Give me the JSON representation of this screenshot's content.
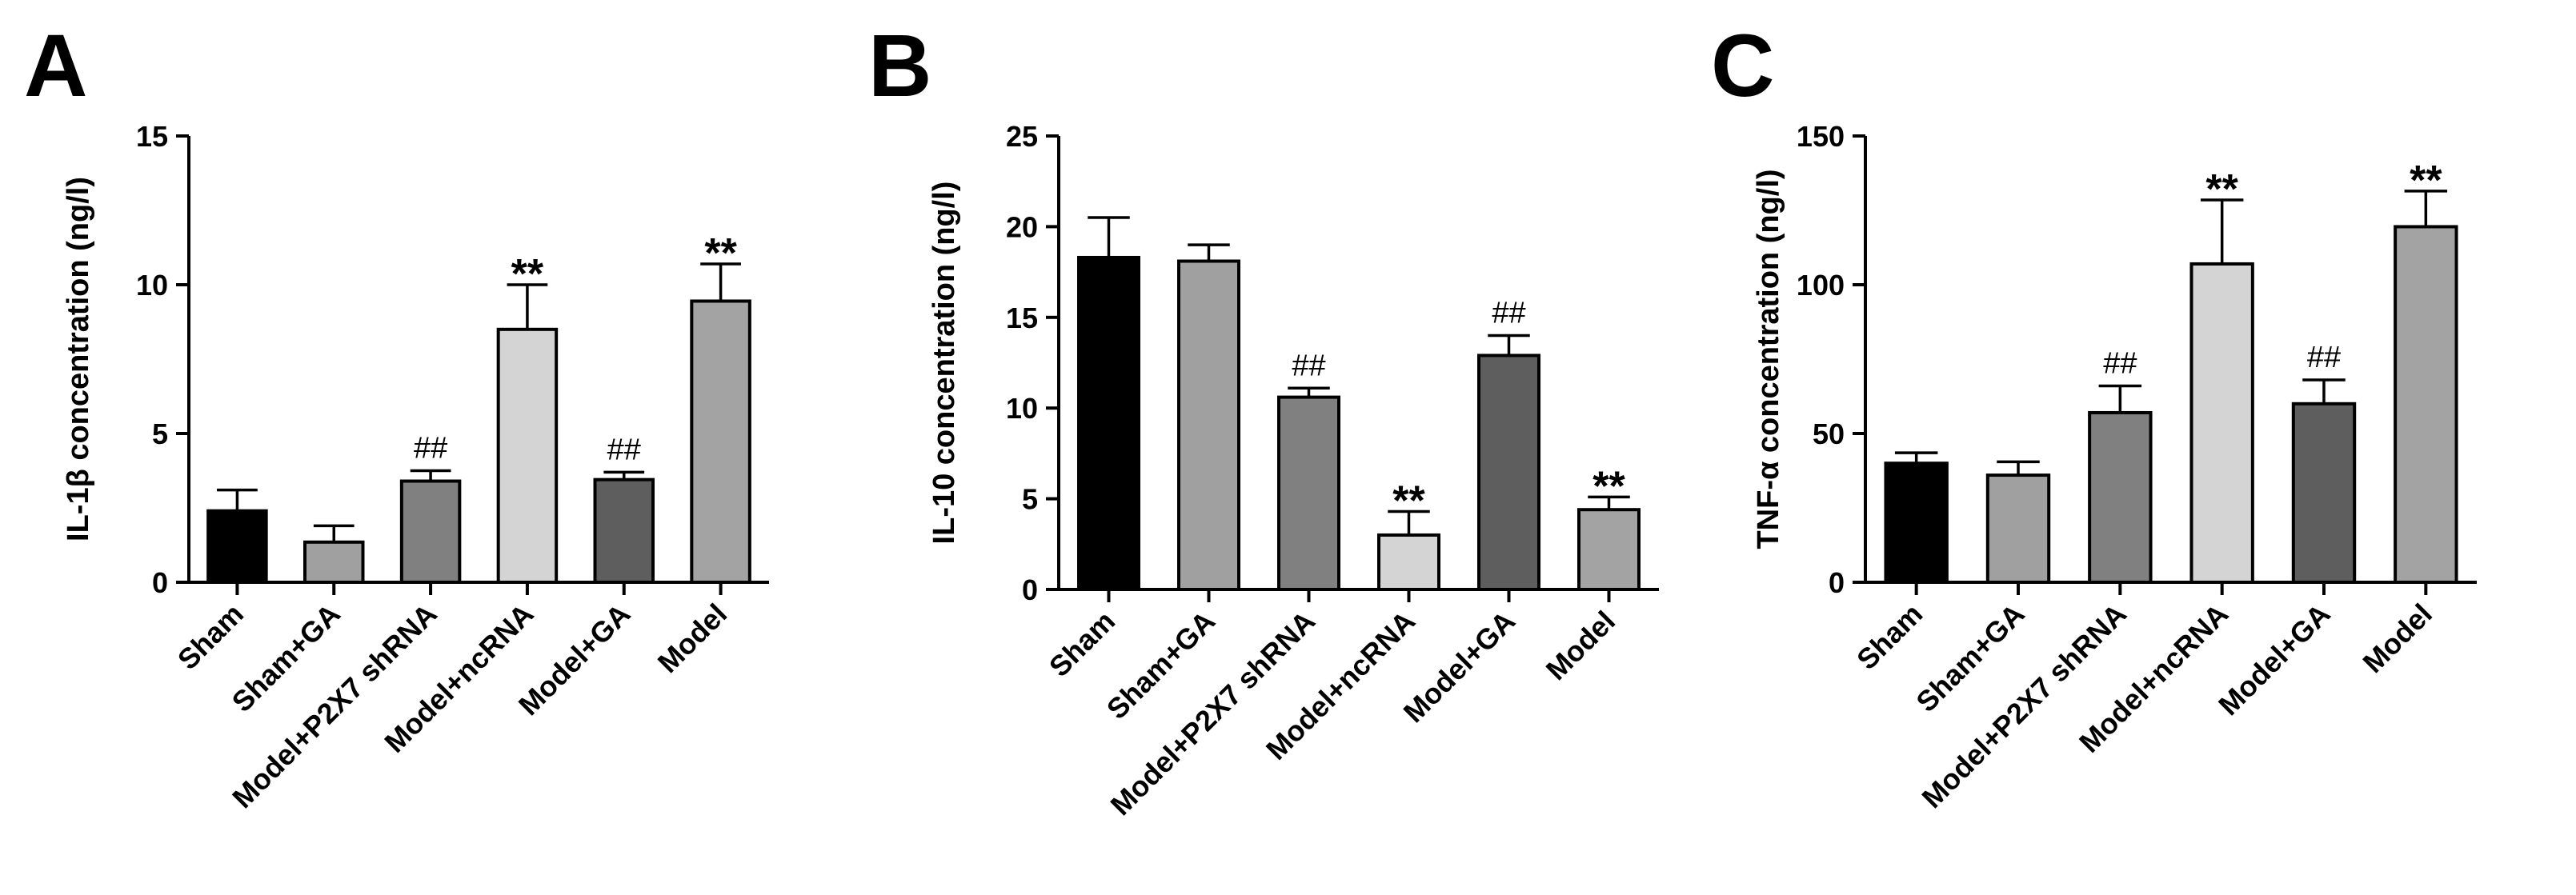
{
  "figure": {
    "colors": {
      "axis": "#000000",
      "background": "#ffffff"
    }
  },
  "chart_data": [
    {
      "type": "bar",
      "panel": "A",
      "title": "",
      "xlabel": "",
      "ylabel": "IL-1β concentration (ng/l)",
      "ylim": [
        0,
        15
      ],
      "yticks": [
        0,
        5,
        10,
        15
      ],
      "categories": [
        "Sham",
        "Sham+GA",
        "Model+P2X7 shRNA",
        "Model+ncRNA",
        "Model+GA",
        "Model"
      ],
      "values": [
        2.4,
        1.35,
        3.4,
        8.5,
        3.45,
        9.45
      ],
      "errors": [
        0.7,
        0.55,
        0.35,
        1.5,
        0.25,
        1.25
      ],
      "annotations": [
        "",
        "",
        "##",
        "**",
        "##",
        "**"
      ],
      "colors": [
        "#000000",
        "#a0a0a0",
        "#808080",
        "#d4d4d4",
        "#5e5e5e",
        "#a3a3a3"
      ]
    },
    {
      "type": "bar",
      "panel": "B",
      "title": "",
      "xlabel": "",
      "ylabel": "IL-10 concentration (ng/l)",
      "ylim": [
        0,
        25
      ],
      "yticks": [
        0,
        5,
        10,
        15,
        20,
        25
      ],
      "categories": [
        "Sham",
        "Sham+GA",
        "Model+P2X7 shRNA",
        "Model+ncRNA",
        "Model+GA",
        "Model"
      ],
      "values": [
        18.3,
        18.1,
        10.6,
        3.0,
        12.9,
        4.4
      ],
      "errors": [
        2.2,
        0.9,
        0.5,
        1.3,
        1.1,
        0.7
      ],
      "annotations": [
        "",
        "",
        "##",
        "**",
        "##",
        "**"
      ],
      "colors": [
        "#000000",
        "#a0a0a0",
        "#808080",
        "#d4d4d4",
        "#5e5e5e",
        "#a3a3a3"
      ]
    },
    {
      "type": "bar",
      "panel": "C",
      "title": "",
      "xlabel": "",
      "ylabel": "TNF-α concentration (ng/l)",
      "ylim": [
        0,
        150
      ],
      "yticks": [
        0,
        50,
        100,
        150
      ],
      "categories": [
        "Sham",
        "Sham+GA",
        "Model+P2X7 shRNA",
        "Model+ncRNA",
        "Model+GA",
        "Model"
      ],
      "values": [
        40,
        36,
        57,
        107,
        60,
        119.5
      ],
      "errors": [
        3.5,
        4.5,
        9,
        21.5,
        8,
        12
      ],
      "annotations": [
        "",
        "",
        "##",
        "**",
        "##",
        "**"
      ],
      "colors": [
        "#000000",
        "#a0a0a0",
        "#808080",
        "#d4d4d4",
        "#5e5e5e",
        "#a3a3a3"
      ]
    }
  ]
}
